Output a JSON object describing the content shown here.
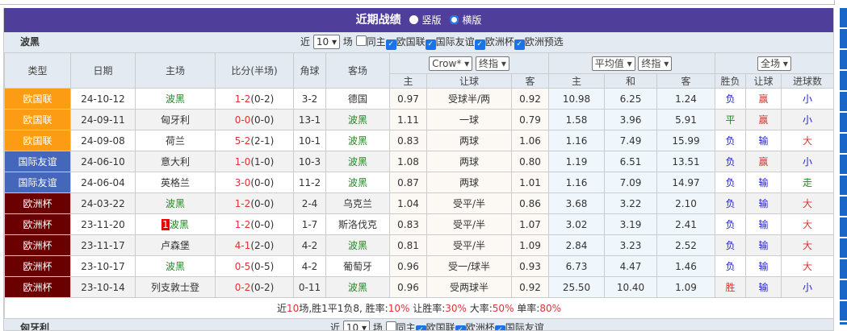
{
  "header": {
    "title": "近期战绩",
    "options": [
      "竖版",
      "横版"
    ],
    "selected": "横版"
  },
  "filter": {
    "team": "波黑",
    "near": "近",
    "count": "10",
    "unit": "场",
    "same_home": "同主",
    "leagues": [
      "欧国联",
      "国际友谊",
      "欧洲杯",
      "欧洲预选"
    ]
  },
  "columns": {
    "type": "类型",
    "date": "日期",
    "home": "主场",
    "score": "比分(半场)",
    "corner": "角球",
    "away": "客场",
    "company": "Crow*",
    "handicap_kind": "终指",
    "avg": "平均值",
    "avg_kind": "终指",
    "scope": "全场",
    "sub": [
      "主",
      "让球",
      "客",
      "主",
      "和",
      "客",
      "胜负",
      "让球",
      "进球数"
    ]
  },
  "colors": {
    "欧国联": "#fb9c14",
    "国际友谊": "#4466bb",
    "欧洲杯": "#6b0000",
    "header": "#4f3f9a"
  },
  "rows": [
    {
      "type": "欧国联",
      "tc": "t1",
      "date": "24-10-12",
      "home": "波黑",
      "hg": true,
      "score": "1-2",
      "half": "(0-2)",
      "corner": "3-2",
      "away": "德国",
      "ag": false,
      "h": "0.97",
      "line": "受球半/两",
      "a": "0.92",
      "oh": "10.98",
      "od": "6.25",
      "oa": "1.24",
      "res": "负",
      "hc": "赢",
      "ou": "小"
    },
    {
      "type": "欧国联",
      "tc": "t1",
      "date": "24-09-11",
      "home": "匈牙利",
      "hg": false,
      "score": "0-0",
      "half": "(0-0)",
      "corner": "13-1",
      "away": "波黑",
      "ag": true,
      "h": "1.11",
      "line": "一球",
      "a": "0.79",
      "oh": "1.58",
      "od": "3.96",
      "oa": "5.91",
      "res": "平",
      "hc": "赢",
      "ou": "小"
    },
    {
      "type": "欧国联",
      "tc": "t1",
      "date": "24-09-08",
      "home": "荷兰",
      "hg": false,
      "score": "5-2",
      "half": "(2-1)",
      "corner": "10-1",
      "away": "波黑",
      "ag": true,
      "h": "0.83",
      "line": "两球",
      "a": "1.06",
      "oh": "1.16",
      "od": "7.49",
      "oa": "15.99",
      "res": "负",
      "hc": "输",
      "ou": "大"
    },
    {
      "type": "国际友谊",
      "tc": "t2",
      "date": "24-06-10",
      "home": "意大利",
      "hg": false,
      "score": "1-0",
      "half": "(1-0)",
      "corner": "10-3",
      "away": "波黑",
      "ag": true,
      "h": "1.08",
      "line": "两球",
      "a": "0.80",
      "oh": "1.19",
      "od": "6.51",
      "oa": "13.51",
      "res": "负",
      "hc": "赢",
      "ou": "小"
    },
    {
      "type": "国际友谊",
      "tc": "t2",
      "date": "24-06-04",
      "home": "英格兰",
      "hg": false,
      "score": "3-0",
      "half": "(0-0)",
      "corner": "11-2",
      "away": "波黑",
      "ag": true,
      "h": "0.87",
      "line": "两球",
      "a": "1.01",
      "oh": "1.16",
      "od": "7.09",
      "oa": "14.97",
      "res": "负",
      "hc": "输",
      "ou": "走"
    },
    {
      "type": "欧洲杯",
      "tc": "t3",
      "date": "24-03-22",
      "home": "波黑",
      "hg": true,
      "score": "1-2",
      "half": "(0-0)",
      "corner": "2-4",
      "away": "乌克兰",
      "ag": false,
      "h": "1.04",
      "line": "受平/半",
      "a": "0.86",
      "oh": "3.68",
      "od": "3.22",
      "oa": "2.10",
      "res": "负",
      "hc": "输",
      "ou": "大"
    },
    {
      "type": "欧洲杯",
      "tc": "t3",
      "date": "23-11-20",
      "home": "波黑",
      "badge": "1",
      "hg": true,
      "score": "1-2",
      "half": "(0-0)",
      "corner": "1-7",
      "away": "斯洛伐克",
      "ag": false,
      "h": "0.83",
      "line": "受平/半",
      "a": "1.07",
      "oh": "3.02",
      "od": "3.19",
      "oa": "2.41",
      "res": "负",
      "hc": "输",
      "ou": "大"
    },
    {
      "type": "欧洲杯",
      "tc": "t3",
      "date": "23-11-17",
      "home": "卢森堡",
      "hg": false,
      "score": "4-1",
      "half": "(2-0)",
      "corner": "4-2",
      "away": "波黑",
      "ag": true,
      "h": "0.81",
      "line": "受平/半",
      "a": "1.09",
      "oh": "2.84",
      "od": "3.23",
      "oa": "2.52",
      "res": "负",
      "hc": "输",
      "ou": "大"
    },
    {
      "type": "欧洲杯",
      "tc": "t3",
      "date": "23-10-17",
      "home": "波黑",
      "hg": true,
      "score": "0-5",
      "half": "(0-5)",
      "corner": "4-2",
      "away": "葡萄牙",
      "ag": false,
      "h": "0.96",
      "line": "受一/球半",
      "a": "0.93",
      "oh": "6.73",
      "od": "4.47",
      "oa": "1.46",
      "res": "负",
      "hc": "输",
      "ou": "大"
    },
    {
      "type": "欧洲杯",
      "tc": "t3",
      "date": "23-10-14",
      "home": "列支敦士登",
      "hg": false,
      "score": "0-2",
      "half": "(0-2)",
      "corner": "0-11",
      "away": "波黑",
      "ag": true,
      "h": "0.96",
      "line": "受两球半",
      "a": "0.92",
      "oh": "25.50",
      "od": "10.40",
      "oa": "1.09",
      "res": "胜",
      "hc": "输",
      "ou": "小"
    }
  ],
  "summary": {
    "p1": "近",
    "n": "10",
    "p2": "场,胜1平1负8, 胜率:",
    "win": "10%",
    "p3": " 让胜率:",
    "hwin": "30%",
    "p4": " 大率:",
    "big": "50%",
    "p5": " 单率:",
    "odd": "80%"
  },
  "next": {
    "team": "匈牙利",
    "near": "近",
    "count": "10",
    "unit": "场",
    "same_home": "同主",
    "leagues": [
      "欧国联",
      "欧洲杯",
      "国际友谊"
    ]
  }
}
